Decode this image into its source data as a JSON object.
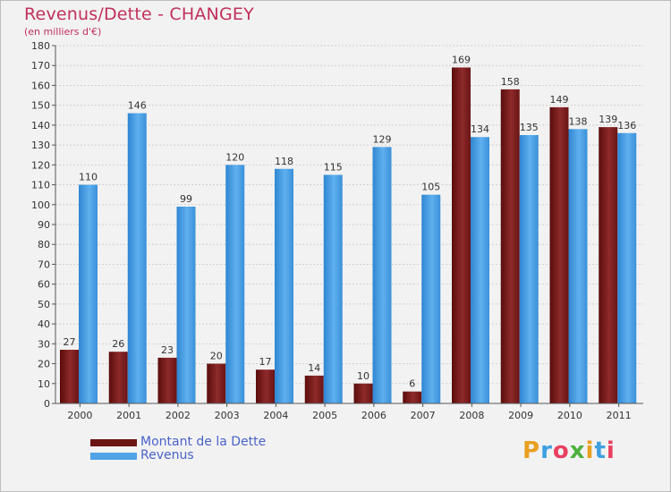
{
  "header": {
    "title": "Revenus/Dette - CHANGEY",
    "subtitle": "(en milliers d'€)"
  },
  "legend": {
    "items": [
      {
        "label": "Montant de la Dette",
        "color": "#7b1c1c"
      },
      {
        "label": "Revenus",
        "color": "#4fa3e6"
      }
    ]
  },
  "logo": {
    "text": "Proxiti",
    "colors": [
      "#e8a020",
      "#3fa0e0",
      "#e84060",
      "#50b040",
      "#e8a020",
      "#3fa0e0",
      "#e84060"
    ]
  },
  "chart_data": {
    "type": "bar",
    "title": "Revenus/Dette - CHANGEY",
    "ylabel": "(en milliers d'€)",
    "xlabel": "",
    "ylim": [
      0,
      180
    ],
    "ytick_step": 10,
    "grid": true,
    "categories": [
      "2000",
      "2001",
      "2002",
      "2003",
      "2004",
      "2005",
      "2006",
      "2007",
      "2008",
      "2009",
      "2010",
      "2011"
    ],
    "series": [
      {
        "name": "Montant de la Dette",
        "color": "#7b1c1c",
        "values": [
          27,
          26,
          23,
          20,
          17,
          14,
          10,
          6,
          169,
          158,
          149,
          139
        ]
      },
      {
        "name": "Revenus",
        "color": "#4fa3e6",
        "values": [
          110,
          146,
          99,
          120,
          118,
          115,
          129,
          105,
          134,
          135,
          138,
          136
        ]
      }
    ]
  }
}
